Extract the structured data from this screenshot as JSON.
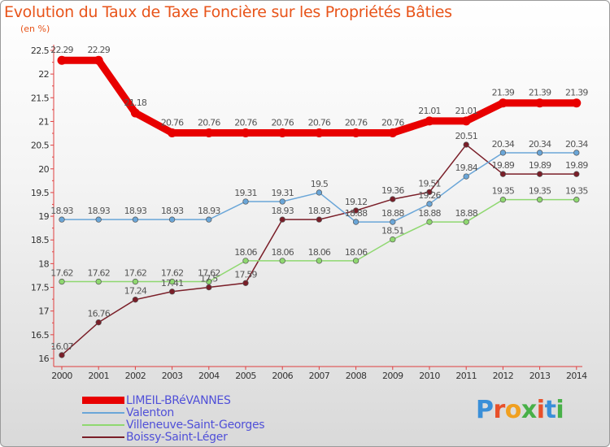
{
  "header": {
    "title": "Evolution du Taux de Taxe Foncière sur les Propriétés Bâties",
    "unit": "(en %)"
  },
  "logo": {
    "letters": [
      "P",
      "r",
      "o",
      "x",
      "i",
      "t",
      "i"
    ],
    "colors": [
      "#3a8fd8",
      "#e8502a",
      "#f0a020",
      "#48b048",
      "#e8502a",
      "#3a8fd8",
      "#48b048"
    ]
  },
  "chart_data": {
    "type": "line",
    "title": "Evolution du Taux de Taxe Foncière sur les Propriétés Bâties",
    "ylabel": "(en %)",
    "xlabel": "",
    "ylim": [
      16,
      22.5
    ],
    "yticks": [
      "16",
      "16.5",
      "17",
      "17.5",
      "18",
      "18.5",
      "19",
      "19.5",
      "20",
      "20.5",
      "21",
      "21.5",
      "22",
      "22.5"
    ],
    "categories": [
      "2000",
      "2001",
      "2002",
      "2003",
      "2004",
      "2005",
      "2006",
      "2007",
      "2008",
      "2009",
      "2010",
      "2011",
      "2012",
      "2013",
      "2014"
    ],
    "grid": false,
    "legend_position": "bottom-left",
    "series": [
      {
        "name": "LIMEIL-BRéVANNES",
        "color": "#e80000",
        "width": 9,
        "values": [
          22.29,
          22.29,
          21.18,
          20.76,
          20.76,
          20.76,
          20.76,
          20.76,
          20.76,
          20.76,
          21.01,
          21.01,
          21.39,
          21.39,
          21.39
        ],
        "labels": [
          "22.29",
          "22.29",
          "21.18",
          "20.76",
          "20.76",
          "20.76",
          "20.76",
          "20.76",
          "20.76",
          "20.76",
          "21.01",
          "21.01",
          "21.39",
          "21.39",
          "21.39"
        ]
      },
      {
        "name": "Valenton",
        "color": "#6aa6d8",
        "width": 1.5,
        "values": [
          18.93,
          18.93,
          18.93,
          18.93,
          18.93,
          19.31,
          19.31,
          19.5,
          18.88,
          18.88,
          19.26,
          19.84,
          20.34,
          20.34,
          20.34
        ],
        "labels": [
          "18.93",
          "18.93",
          "18.93",
          "18.93",
          "18.93",
          "19.31",
          "19.31",
          "19.5",
          "18.88",
          "18.88",
          "19.26",
          "19.84",
          "20.34",
          "20.34",
          "20.34"
        ]
      },
      {
        "name": "Villeneuve-Saint-Georges",
        "color": "#8fd870",
        "width": 1.5,
        "values": [
          17.62,
          17.62,
          17.62,
          17.62,
          17.62,
          18.06,
          18.06,
          18.06,
          18.06,
          18.51,
          18.88,
          18.88,
          19.35,
          19.35,
          19.35
        ],
        "labels": [
          "17.62",
          "17.62",
          "17.62",
          "17.62",
          "17.62",
          "18.06",
          "18.06",
          "18.06",
          "18.06",
          "18.51",
          "18.88",
          "18.88",
          "19.35",
          "19.35",
          "19.35"
        ]
      },
      {
        "name": "Boissy-Saint-Léger",
        "color": "#7a1e28",
        "width": 1.5,
        "values": [
          16.07,
          16.76,
          17.24,
          17.41,
          17.5,
          17.59,
          18.93,
          18.93,
          19.12,
          19.36,
          19.51,
          20.51,
          19.89,
          19.89,
          19.89
        ],
        "labels": [
          "16.07",
          "16.76",
          "17.24",
          "17.41",
          "17.5",
          "17.59",
          "18.93",
          "18.93",
          "19.12",
          "19.36",
          "19.51",
          "20.51",
          "19.89",
          "19.89",
          "19.89"
        ]
      }
    ]
  }
}
